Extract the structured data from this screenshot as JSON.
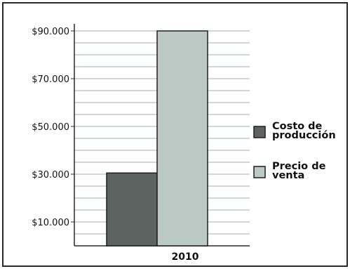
{
  "chart_data": {
    "type": "bar",
    "categories": [
      "2010"
    ],
    "series": [
      {
        "name": "Costo de producción",
        "legend_lines": [
          "Costo de",
          "producción"
        ],
        "values": [
          30500
        ],
        "color": "#5c6360"
      },
      {
        "name": "Precio de venta",
        "legend_lines": [
          "Precio de",
          "venta"
        ],
        "values": [
          90000
        ],
        "color": "#bccac6"
      }
    ],
    "ylim": [
      0,
      100000
    ],
    "yticks": [
      10000,
      30000,
      50000,
      70000,
      90000
    ],
    "ytick_labels": [
      "$10.000",
      "$30.000",
      "$50.000",
      "$70.000",
      "$90.000"
    ],
    "grid_step": 5000,
    "grid": true,
    "legend_position": "right",
    "title": "",
    "xlabel": "",
    "ylabel": ""
  }
}
